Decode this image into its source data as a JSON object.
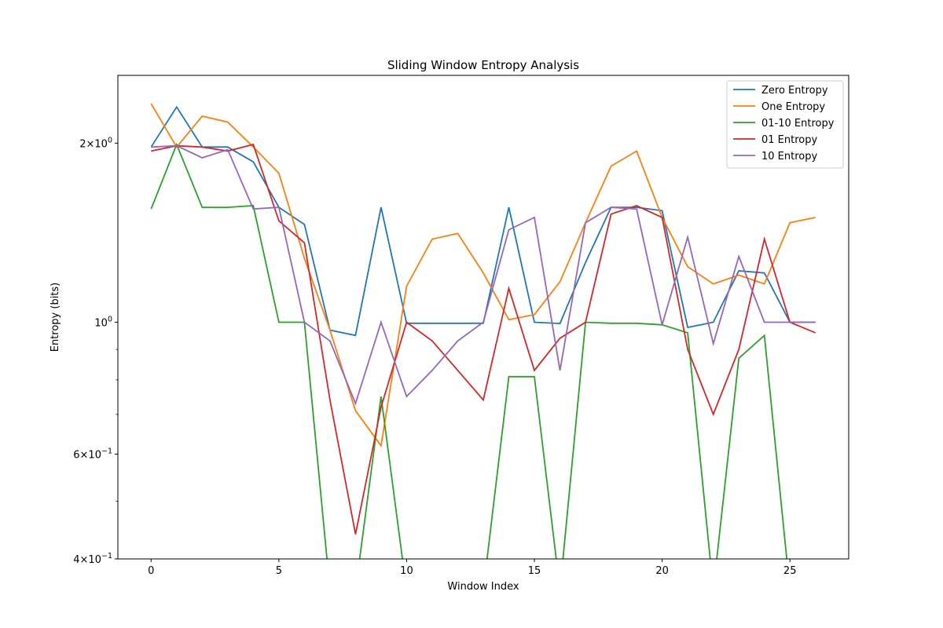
{
  "chart_data": {
    "type": "line",
    "title": "Sliding Window Entropy Analysis",
    "xlabel": "Window Index",
    "ylabel": "Entropy (bits)",
    "xlim": [
      -1.3,
      27.3
    ],
    "ylim": [
      0.4,
      2.6
    ],
    "yscale": "log",
    "x_ticks": [
      0,
      5,
      10,
      15,
      20,
      25
    ],
    "x_tick_labels": [
      "0",
      "5",
      "10",
      "15",
      "20",
      "25"
    ],
    "y_major_ticks": [
      {
        "value": 0.4,
        "base": "4",
        "exp": "−1"
      },
      {
        "value": 0.6,
        "base": "6",
        "exp": "−1"
      },
      {
        "value": 1.0,
        "label": "10",
        "exp": "0"
      },
      {
        "value": 2.0,
        "base": "2",
        "exp": "0"
      }
    ],
    "y_minor_ticks": [
      0.5,
      0.7,
      0.8,
      0.9
    ],
    "grid": false,
    "legend_position": "top-right",
    "x": [
      0,
      1,
      2,
      3,
      4,
      5,
      6,
      7,
      8,
      9,
      10,
      11,
      12,
      13,
      14,
      15,
      16,
      17,
      18,
      19,
      20,
      21,
      22,
      23,
      24,
      25,
      26
    ],
    "series": [
      {
        "name": "Zero Entropy",
        "color": "#1f77b4",
        "values": [
          1.97,
          2.3,
          1.97,
          1.97,
          1.86,
          1.56,
          1.46,
          0.97,
          0.95,
          1.56,
          0.996,
          0.996,
          0.996,
          0.996,
          1.56,
          1.0,
          0.995,
          1.26,
          1.56,
          1.56,
          1.54,
          0.98,
          1.0,
          1.22,
          1.21,
          1.0,
          1.0
        ]
      },
      {
        "name": "One Entropy",
        "color": "#ff7f0e",
        "values": [
          2.33,
          1.97,
          2.22,
          2.17,
          1.97,
          1.78,
          1.28,
          0.97,
          0.71,
          0.62,
          1.15,
          1.38,
          1.41,
          1.21,
          1.01,
          1.03,
          1.17,
          1.47,
          1.83,
          1.94,
          1.5,
          1.24,
          1.16,
          1.2,
          1.16,
          1.47,
          1.5
        ]
      },
      {
        "name": "01-10 Entropy",
        "color": "#2ca02c",
        "values": [
          1.55,
          1.99,
          1.56,
          1.56,
          1.57,
          1.0,
          1.0,
          0.0,
          0.0,
          0.75,
          0.0,
          0.0,
          0.0,
          0.0,
          0.81,
          0.81,
          0.0,
          1.0,
          0.996,
          0.996,
          0.99,
          0.96,
          0.0,
          0.87,
          0.95,
          0.0,
          0.0
        ]
      },
      {
        "name": "01 Entropy",
        "color": "#d62728",
        "values": [
          1.94,
          1.98,
          1.97,
          1.94,
          1.99,
          1.48,
          1.36,
          0.74,
          0.44,
          0.72,
          1.0,
          0.93,
          0.83,
          0.74,
          1.14,
          0.83,
          0.94,
          1.0,
          1.52,
          1.57,
          1.5,
          0.9,
          0.7,
          0.9,
          1.38,
          1.0,
          0.96
        ]
      },
      {
        "name": "10 Entropy",
        "color": "#9467bd",
        "values": [
          1.97,
          1.98,
          1.89,
          1.95,
          1.55,
          1.56,
          1.0,
          0.93,
          0.73,
          1.0,
          0.75,
          0.83,
          0.93,
          1.0,
          1.43,
          1.5,
          0.83,
          1.47,
          1.56,
          1.55,
          0.99,
          1.39,
          0.92,
          1.29,
          1.0,
          1.0,
          1.0
        ]
      }
    ]
  }
}
